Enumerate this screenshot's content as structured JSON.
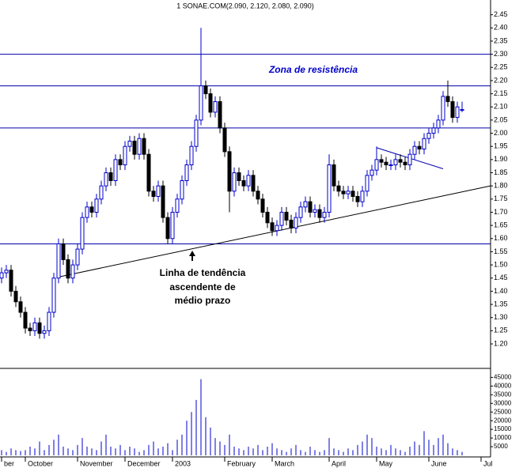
{
  "chart_data": {
    "type": "candlestick",
    "title": "1 SONAE.COM(2.090, 2.120, 2.080, 2.090)",
    "categories": [
      "ber",
      null,
      null,
      null,
      null,
      "October",
      null,
      null,
      null,
      null,
      null,
      null,
      null,
      null,
      null,
      null,
      "November",
      null,
      null,
      null,
      null,
      null,
      null,
      null,
      null,
      null,
      "December",
      null,
      null,
      null,
      null,
      null,
      null,
      null,
      null,
      null,
      "2003",
      null,
      null,
      null,
      null,
      null,
      null,
      null,
      null,
      null,
      null,
      "February",
      null,
      null,
      null,
      null,
      null,
      null,
      null,
      null,
      null,
      "March",
      null,
      null,
      null,
      null,
      null,
      null,
      null,
      null,
      null,
      null,
      null,
      "April",
      null,
      null,
      null,
      null,
      null,
      null,
      null,
      null,
      null,
      "May",
      null,
      null,
      null,
      null,
      null,
      null,
      null,
      null,
      null,
      null,
      "June",
      null,
      null,
      null,
      null,
      null,
      null,
      null,
      null,
      null,
      null,
      "Jul"
    ],
    "open": [
      1.45,
      1.47,
      1.48,
      1.4,
      1.36,
      1.32,
      1.26,
      1.25,
      1.28,
      1.24,
      1.25,
      1.32,
      1.45,
      1.58,
      1.52,
      1.45,
      1.5,
      1.56,
      1.68,
      1.72,
      1.7,
      1.75,
      1.8,
      1.85,
      1.82,
      1.9,
      1.88,
      1.95,
      1.97,
      1.92,
      1.98,
      1.92,
      1.78,
      1.76,
      1.8,
      1.68,
      1.6,
      1.7,
      1.75,
      1.82,
      1.88,
      1.95,
      2.05,
      2.18,
      2.15,
      2.08,
      2.12,
      2.02,
      1.93,
      1.78,
      1.85,
      1.82,
      1.8,
      1.84,
      1.78,
      1.75,
      1.7,
      1.66,
      1.63,
      1.65,
      1.7,
      1.67,
      1.64,
      1.68,
      1.72,
      1.74,
      1.7,
      1.71,
      1.68,
      1.7,
      1.88,
      1.8,
      1.78,
      1.77,
      1.78,
      1.76,
      1.74,
      1.78,
      1.84,
      1.86,
      1.9,
      1.89,
      1.88,
      1.88,
      1.9,
      1.89,
      1.88,
      1.92,
      1.95,
      1.94,
      1.98,
      2.0,
      2.02,
      2.05,
      2.14,
      2.12,
      2.06,
      2.09,
      null,
      null,
      null,
      null
    ],
    "high": [
      1.49,
      1.5,
      1.5,
      1.42,
      1.38,
      1.34,
      1.28,
      1.3,
      1.3,
      1.27,
      1.34,
      1.47,
      1.6,
      1.6,
      1.54,
      1.52,
      1.58,
      1.7,
      1.74,
      1.74,
      1.77,
      1.82,
      1.87,
      1.87,
      1.92,
      1.92,
      1.97,
      1.99,
      1.99,
      2.0,
      2.0,
      1.94,
      1.8,
      1.82,
      1.82,
      1.7,
      1.72,
      1.77,
      1.84,
      1.9,
      1.97,
      2.07,
      2.4,
      2.2,
      2.17,
      2.14,
      2.14,
      2.04,
      1.95,
      1.87,
      1.87,
      1.84,
      1.86,
      1.86,
      1.8,
      1.77,
      1.72,
      1.68,
      1.67,
      1.72,
      1.72,
      1.69,
      1.7,
      1.74,
      1.76,
      1.76,
      1.73,
      1.73,
      1.72,
      1.92,
      1.9,
      1.82,
      1.8,
      1.8,
      1.8,
      1.78,
      1.8,
      1.86,
      1.88,
      1.95,
      1.92,
      1.91,
      1.9,
      1.92,
      1.92,
      1.91,
      1.94,
      1.97,
      1.97,
      2.0,
      2.02,
      2.04,
      2.07,
      2.16,
      2.2,
      2.14,
      2.12,
      2.12,
      null,
      null,
      null,
      null
    ],
    "low": [
      1.43,
      1.45,
      1.38,
      1.34,
      1.3,
      1.24,
      1.23,
      1.23,
      1.22,
      1.22,
      1.23,
      1.3,
      1.43,
      1.5,
      1.43,
      1.43,
      1.48,
      1.54,
      1.66,
      1.68,
      1.68,
      1.73,
      1.78,
      1.8,
      1.8,
      1.86,
      1.86,
      1.93,
      1.9,
      1.9,
      1.9,
      1.76,
      1.74,
      1.74,
      1.66,
      1.58,
      1.58,
      1.68,
      1.73,
      1.8,
      1.86,
      1.93,
      2.03,
      2.13,
      2.06,
      2.06,
      2.0,
      1.91,
      1.7,
      1.76,
      1.8,
      1.78,
      1.78,
      1.76,
      1.73,
      1.68,
      1.64,
      1.61,
      1.61,
      1.63,
      1.65,
      1.62,
      1.62,
      1.66,
      1.7,
      1.68,
      1.68,
      1.66,
      1.66,
      1.68,
      1.78,
      1.76,
      1.75,
      1.75,
      1.74,
      1.72,
      1.72,
      1.76,
      1.82,
      1.84,
      1.87,
      1.86,
      1.86,
      1.86,
      1.87,
      1.86,
      1.86,
      1.9,
      1.92,
      1.92,
      1.96,
      1.98,
      2.0,
      2.03,
      2.1,
      2.04,
      2.04,
      2.08,
      null,
      null,
      null,
      null
    ],
    "close": [
      1.47,
      1.48,
      1.4,
      1.36,
      1.32,
      1.26,
      1.25,
      1.28,
      1.24,
      1.25,
      1.32,
      1.45,
      1.58,
      1.52,
      1.45,
      1.5,
      1.56,
      1.68,
      1.72,
      1.7,
      1.75,
      1.8,
      1.85,
      1.82,
      1.9,
      1.88,
      1.95,
      1.97,
      1.92,
      1.98,
      1.92,
      1.78,
      1.76,
      1.8,
      1.68,
      1.6,
      1.7,
      1.75,
      1.82,
      1.88,
      1.95,
      2.05,
      2.18,
      2.15,
      2.08,
      2.12,
      2.02,
      1.93,
      1.78,
      1.85,
      1.82,
      1.8,
      1.84,
      1.78,
      1.75,
      1.7,
      1.66,
      1.63,
      1.65,
      1.7,
      1.67,
      1.64,
      1.68,
      1.72,
      1.74,
      1.7,
      1.71,
      1.68,
      1.7,
      1.88,
      1.8,
      1.78,
      1.77,
      1.78,
      1.76,
      1.74,
      1.78,
      1.84,
      1.86,
      1.9,
      1.89,
      1.88,
      1.88,
      1.9,
      1.89,
      1.88,
      1.92,
      1.95,
      1.94,
      1.98,
      2.0,
      2.02,
      2.05,
      2.14,
      2.12,
      2.06,
      2.1,
      2.09,
      null,
      null,
      null,
      null
    ],
    "volume": [
      3000,
      2000,
      4000,
      3000,
      2500,
      3000,
      5000,
      4000,
      8000,
      3000,
      6000,
      9000,
      12000,
      5000,
      4000,
      3000,
      6000,
      10000,
      5000,
      4000,
      3000,
      8000,
      12000,
      5000,
      4000,
      6000,
      3000,
      5000,
      4000,
      2000,
      3000,
      6000,
      8000,
      4000,
      5000,
      7000,
      3000,
      9000,
      12000,
      20000,
      25000,
      32000,
      44000,
      22000,
      16000,
      10000,
      8000,
      6000,
      12000,
      5000,
      4000,
      3000,
      5000,
      4000,
      6000,
      3000,
      5000,
      7000,
      4000,
      3000,
      2000,
      4000,
      6000,
      3000,
      2000,
      5000,
      3000,
      2000,
      3000,
      10000,
      4000,
      3000,
      2000,
      4000,
      3000,
      6000,
      8000,
      12000,
      10000,
      5000,
      4000,
      3000,
      6000,
      4000,
      3000,
      2000,
      5000,
      8000,
      6000,
      14000,
      9000,
      6000,
      10000,
      12000,
      7000,
      4000,
      3000,
      2000,
      null,
      null,
      null,
      null
    ],
    "up_color": "#0000cc",
    "down_color": "#000000",
    "volume_color": "#0000cc",
    "ylim": [
      1.11,
      2.5
    ],
    "yticks": [
      {
        "value": 1.2,
        "label": "1.20"
      },
      {
        "value": 1.25,
        "label": "1.25"
      },
      {
        "value": 1.3,
        "label": "1.30"
      },
      {
        "value": 1.35,
        "label": "1.35"
      },
      {
        "value": 1.4,
        "label": "1.40"
      },
      {
        "value": 1.45,
        "label": "1.45"
      },
      {
        "value": 1.5,
        "label": "1.50"
      },
      {
        "value": 1.55,
        "label": "1.55"
      },
      {
        "value": 1.6,
        "label": "1.60"
      },
      {
        "value": 1.65,
        "label": "1.65"
      },
      {
        "value": 1.7,
        "label": "1.70"
      },
      {
        "value": 1.75,
        "label": "1.75"
      },
      {
        "value": 1.8,
        "label": "1.80"
      },
      {
        "value": 1.85,
        "label": "1.85"
      },
      {
        "value": 1.9,
        "label": "1.90"
      },
      {
        "value": 1.95,
        "label": "1.95"
      },
      {
        "value": 2.0,
        "label": "2.00"
      },
      {
        "value": 2.05,
        "label": "2.05"
      },
      {
        "value": 2.1,
        "label": "2.10"
      },
      {
        "value": 2.15,
        "label": "2.15"
      },
      {
        "value": 2.2,
        "label": "2.20"
      },
      {
        "value": 2.25,
        "label": "2.25"
      },
      {
        "value": 2.3,
        "label": "2.30"
      },
      {
        "value": 2.35,
        "label": "2.35"
      },
      {
        "value": 2.4,
        "label": "2.40"
      },
      {
        "value": 2.45,
        "label": "2.45"
      }
    ],
    "y2lim": [
      0,
      47000
    ],
    "y2ticks": [
      5000,
      10000,
      15000,
      20000,
      25000,
      30000,
      35000,
      40000,
      45000
    ],
    "hlines": [
      2.3,
      2.18,
      2.02,
      1.58
    ],
    "hline_color": "#0000aa",
    "trendlines": [
      {
        "x": [
          12.2,
          103
        ],
        "y": [
          1.455,
          1.8
        ],
        "color": "#000000"
      },
      {
        "x": [
          79,
          93
        ],
        "y": [
          1.945,
          1.865
        ],
        "color": "#0000aa"
      }
    ],
    "annotations": [
      "Zona de resistência",
      "Linha de tendência",
      "ascendente de",
      "médio prazo"
    ]
  }
}
